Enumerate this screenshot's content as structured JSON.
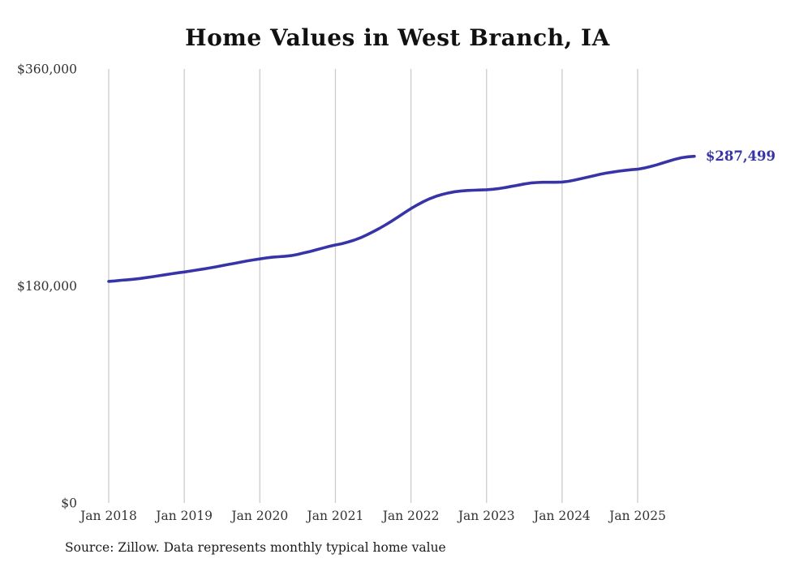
{
  "title": "Home Values in West Branch, IA",
  "source_note": "Source: Zillow. Data represents monthly typical home value",
  "colors": {
    "line": "#3734a8",
    "end_label": "#3734a8",
    "grid": "#cccccc",
    "axis_text": "#333333",
    "title_text": "#111111"
  },
  "chart_data": {
    "type": "line",
    "title": "Home Values in West Branch, IA",
    "xlabel": "",
    "ylabel": "",
    "ylim": [
      0,
      360000
    ],
    "grid": "vertical-only",
    "legend": "none",
    "x_tick_labels": [
      "Jan 2018",
      "Jan 2019",
      "Jan 2020",
      "Jan 2021",
      "Jan 2022",
      "Jan 2023",
      "Jan 2024",
      "Jan 2025"
    ],
    "y_tick_labels": [
      "$0",
      "$180,000",
      "$360,000"
    ],
    "y_tick_values": [
      0,
      180000,
      360000
    ],
    "last_point": {
      "month": "2025-10",
      "value": 287499,
      "label": "$287,499"
    },
    "series": [
      {
        "name": "Monthly typical home value",
        "months": [
          "2018-01",
          "2018-02",
          "2018-03",
          "2018-04",
          "2018-05",
          "2018-06",
          "2018-07",
          "2018-08",
          "2018-09",
          "2018-10",
          "2018-11",
          "2018-12",
          "2019-01",
          "2019-02",
          "2019-03",
          "2019-04",
          "2019-05",
          "2019-06",
          "2019-07",
          "2019-08",
          "2019-09",
          "2019-10",
          "2019-11",
          "2019-12",
          "2020-01",
          "2020-02",
          "2020-03",
          "2020-04",
          "2020-05",
          "2020-06",
          "2020-07",
          "2020-08",
          "2020-09",
          "2020-10",
          "2020-11",
          "2020-12",
          "2021-01",
          "2021-02",
          "2021-03",
          "2021-04",
          "2021-05",
          "2021-06",
          "2021-07",
          "2021-08",
          "2021-09",
          "2021-10",
          "2021-11",
          "2021-12",
          "2022-01",
          "2022-02",
          "2022-03",
          "2022-04",
          "2022-05",
          "2022-06",
          "2022-07",
          "2022-08",
          "2022-09",
          "2022-10",
          "2022-11",
          "2022-12",
          "2023-01",
          "2023-02",
          "2023-03",
          "2023-04",
          "2023-05",
          "2023-06",
          "2023-07",
          "2023-08",
          "2023-09",
          "2023-10",
          "2023-11",
          "2023-12",
          "2024-01",
          "2024-02",
          "2024-03",
          "2024-04",
          "2024-05",
          "2024-06",
          "2024-07",
          "2024-08",
          "2024-09",
          "2024-10",
          "2024-11",
          "2024-12",
          "2025-01",
          "2025-02",
          "2025-03",
          "2025-04",
          "2025-05",
          "2025-06",
          "2025-07",
          "2025-08",
          "2025-09",
          "2025-10"
        ],
        "values": [
          183800,
          184200,
          184700,
          185100,
          185600,
          186200,
          186900,
          187700,
          188500,
          189300,
          190100,
          190900,
          191600,
          192400,
          193200,
          194000,
          194900,
          195800,
          196800,
          197800,
          198800,
          199800,
          200800,
          201600,
          202400,
          203200,
          203800,
          204200,
          204600,
          205200,
          206200,
          207400,
          208600,
          210000,
          211400,
          212800,
          214000,
          215000,
          216400,
          218000,
          220000,
          222400,
          225000,
          227800,
          230800,
          234000,
          237400,
          240800,
          244200,
          247200,
          250000,
          252400,
          254400,
          256000,
          257200,
          258200,
          258800,
          259200,
          259400,
          259600,
          259800,
          260200,
          260800,
          261600,
          262600,
          263600,
          264600,
          265400,
          265800,
          266000,
          266000,
          266000,
          266200,
          266800,
          267800,
          269000,
          270200,
          271400,
          272600,
          273600,
          274400,
          275200,
          275800,
          276400,
          276800,
          277800,
          279000,
          280400,
          282000,
          283600,
          285200,
          286400,
          287100,
          287499
        ]
      }
    ]
  }
}
